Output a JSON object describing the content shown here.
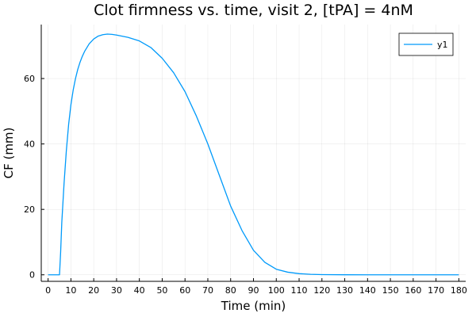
{
  "chart_data": {
    "type": "line",
    "title": "Clot firmness vs. time, visit 2, [tPA] = 4nM",
    "xlabel": "Time (min)",
    "ylabel": "CF (mm)",
    "xlim": [
      -3,
      183
    ],
    "ylim": [
      -2,
      76.5
    ],
    "grid": true,
    "legend": "top-right",
    "xticks": [
      0,
      10,
      20,
      30,
      40,
      50,
      60,
      70,
      80,
      90,
      100,
      110,
      120,
      130,
      140,
      150,
      160,
      170,
      180
    ],
    "xtick_labels": [
      "0",
      "10",
      "20",
      "30",
      "40",
      "50",
      "60",
      "70",
      "80",
      "90",
      "100",
      "110",
      "120",
      "130",
      "140",
      "150",
      "160",
      "170",
      "180"
    ],
    "yticks": [
      0,
      20,
      40,
      60
    ],
    "ytick_labels": [
      "0",
      "20",
      "40",
      "60"
    ],
    "series": [
      {
        "name": "y1",
        "color": "#009AFA",
        "x": [
          0,
          3,
          5,
          5.5,
          6,
          7,
          8,
          9,
          10,
          11,
          12,
          13,
          14,
          15,
          16,
          18,
          20,
          22,
          24,
          26,
          28,
          30,
          35,
          40,
          45,
          50,
          55,
          60,
          65,
          70,
          75,
          80,
          85,
          90,
          95,
          100,
          105,
          110,
          115,
          120,
          130,
          140,
          150,
          160,
          170,
          180
        ],
        "y": [
          0,
          0,
          0,
          7,
          16,
          28,
          38,
          46,
          52,
          56.5,
          60,
          62.8,
          65,
          66.8,
          68.3,
          70.6,
          72.1,
          73,
          73.4,
          73.6,
          73.5,
          73.3,
          72.6,
          71.5,
          69.5,
          66.2,
          61.8,
          56,
          48.5,
          40,
          30.5,
          21,
          13.5,
          7.5,
          3.8,
          1.7,
          0.8,
          0.35,
          0.15,
          0.06,
          0.01,
          0,
          0,
          0,
          0,
          0
        ]
      }
    ]
  }
}
